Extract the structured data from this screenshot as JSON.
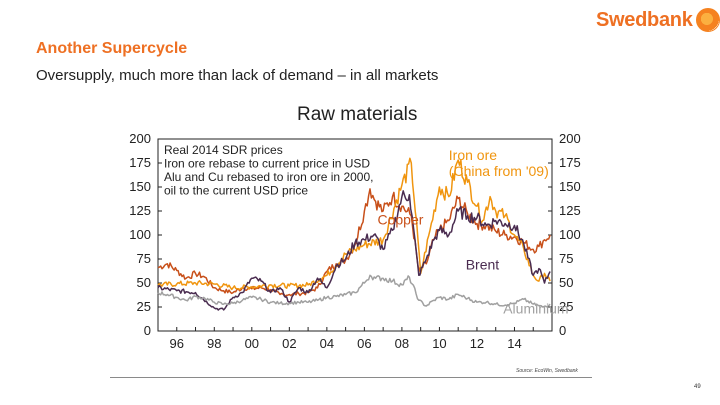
{
  "brand": {
    "name": "Swedbank",
    "color": "#ee7023"
  },
  "slide": {
    "title": "Another Supercycle",
    "subtitle": "Oversupply, much more than lack of demand – in all markets"
  },
  "source": "Source: EcoWin, Swedbank",
  "page_number": "49",
  "chart_data": {
    "type": "line",
    "title": "Raw materials",
    "notes": [
      "Real 2014 SDR prices",
      "Iron ore rebase to current price in USD",
      "Alu and Cu rebased to iron ore in 2000,",
      "oil to the current USD price"
    ],
    "xlim": [
      1995,
      2016
    ],
    "ylim": [
      0,
      200
    ],
    "x_ticks": [
      {
        "value": 1996,
        "label": "96"
      },
      {
        "value": 1998,
        "label": "98"
      },
      {
        "value": 2000,
        "label": "00"
      },
      {
        "value": 2002,
        "label": "02"
      },
      {
        "value": 2004,
        "label": "04"
      },
      {
        "value": 2006,
        "label": "06"
      },
      {
        "value": 2008,
        "label": "08"
      },
      {
        "value": 2010,
        "label": "10"
      },
      {
        "value": 2012,
        "label": "12"
      },
      {
        "value": 2014,
        "label": "14"
      }
    ],
    "y_ticks": [
      0,
      25,
      50,
      75,
      100,
      125,
      150,
      175,
      200
    ],
    "series": [
      {
        "name": "Copper",
        "color": "#c8501a",
        "label_text": "Copper",
        "label_at": [
          2006.7,
          111
        ],
        "points": [
          [
            1995,
            66
          ],
          [
            1995.5,
            70
          ],
          [
            1996,
            63
          ],
          [
            1996.5,
            55
          ],
          [
            1997,
            60
          ],
          [
            1997.5,
            56
          ],
          [
            1998,
            45
          ],
          [
            1998.5,
            42
          ],
          [
            1999,
            40
          ],
          [
            1999.5,
            45
          ],
          [
            2000,
            44
          ],
          [
            2000.5,
            45
          ],
          [
            2001,
            43
          ],
          [
            2001.5,
            38
          ],
          [
            2002,
            38
          ],
          [
            2002.5,
            39
          ],
          [
            2003,
            40
          ],
          [
            2003.5,
            45
          ],
          [
            2004,
            62
          ],
          [
            2004.5,
            70
          ],
          [
            2005,
            74
          ],
          [
            2005.5,
            90
          ],
          [
            2006,
            125
          ],
          [
            2006.3,
            148
          ],
          [
            2006.6,
            135
          ],
          [
            2007,
            125
          ],
          [
            2007.5,
            140
          ],
          [
            2008,
            130
          ],
          [
            2008.5,
            120
          ],
          [
            2008.9,
            62
          ],
          [
            2009.3,
            70
          ],
          [
            2009.7,
            95
          ],
          [
            2010,
            105
          ],
          [
            2010.5,
            115
          ],
          [
            2011,
            138
          ],
          [
            2011.5,
            122
          ],
          [
            2012,
            112
          ],
          [
            2012.5,
            110
          ],
          [
            2013,
            104
          ],
          [
            2013.5,
            100
          ],
          [
            2014,
            98
          ],
          [
            2014.5,
            92
          ],
          [
            2015,
            85
          ],
          [
            2015.3,
            88
          ],
          [
            2015.6,
            95
          ],
          [
            2015.9,
            100
          ]
        ]
      },
      {
        "name": "Iron ore (China from '09)",
        "color": "#f0950f",
        "label_text": [
          "Iron ore",
          "(China from '09)"
        ],
        "label_at": [
          2010.5,
          178
        ],
        "points": [
          [
            1995,
            48
          ],
          [
            1996,
            49
          ],
          [
            1997,
            50
          ],
          [
            1998,
            49
          ],
          [
            1999,
            45
          ],
          [
            2000,
            46
          ],
          [
            2001,
            48
          ],
          [
            2002,
            47
          ],
          [
            2003,
            48
          ],
          [
            2004,
            58
          ],
          [
            2005,
            80
          ],
          [
            2006,
            90
          ],
          [
            2007,
            95
          ],
          [
            2008,
            152
          ],
          [
            2008.5,
            175
          ],
          [
            2009,
            60
          ],
          [
            2009.5,
            105
          ],
          [
            2010,
            150
          ],
          [
            2010.5,
            140
          ],
          [
            2011,
            178
          ],
          [
            2011.5,
            155
          ],
          [
            2012,
            130
          ],
          [
            2012.3,
            115
          ],
          [
            2012.7,
            140
          ],
          [
            2013,
            125
          ],
          [
            2013.5,
            120
          ],
          [
            2014,
            100
          ],
          [
            2014.5,
            85
          ],
          [
            2015,
            58
          ],
          [
            2015.3,
            52
          ],
          [
            2015.6,
            60
          ],
          [
            2015.9,
            52
          ]
        ]
      },
      {
        "name": "Brent",
        "color": "#4a2c50",
        "label_text": "Brent",
        "label_at": [
          2011.4,
          64
        ],
        "points": [
          [
            1995,
            45
          ],
          [
            1996,
            42
          ],
          [
            1997,
            40
          ],
          [
            1998,
            24
          ],
          [
            1998.5,
            22
          ],
          [
            1999,
            35
          ],
          [
            1999.5,
            40
          ],
          [
            2000,
            55
          ],
          [
            2000.5,
            52
          ],
          [
            2001,
            40
          ],
          [
            2001.5,
            45
          ],
          [
            2002,
            30
          ],
          [
            2002.5,
            45
          ],
          [
            2003,
            40
          ],
          [
            2003.5,
            55
          ],
          [
            2004,
            45
          ],
          [
            2004.5,
            68
          ],
          [
            2005,
            75
          ],
          [
            2005.5,
            92
          ],
          [
            2006,
            95
          ],
          [
            2006.5,
            100
          ],
          [
            2007,
            85
          ],
          [
            2007.5,
            105
          ],
          [
            2008,
            140
          ],
          [
            2008.4,
            142
          ],
          [
            2008.9,
            58
          ],
          [
            2009.3,
            75
          ],
          [
            2009.7,
            95
          ],
          [
            2010,
            105
          ],
          [
            2010.5,
            100
          ],
          [
            2011,
            125
          ],
          [
            2011.5,
            120
          ],
          [
            2012,
            118
          ],
          [
            2012.5,
            110
          ],
          [
            2013,
            115
          ],
          [
            2013.5,
            112
          ],
          [
            2014,
            110
          ],
          [
            2014.5,
            90
          ],
          [
            2015,
            58
          ],
          [
            2015.3,
            65
          ],
          [
            2015.6,
            50
          ],
          [
            2015.9,
            62
          ]
        ]
      },
      {
        "name": "Aluminium",
        "color": "#a0a0a0",
        "label_text": "Aluminium",
        "label_at": [
          2013.4,
          18
        ],
        "points": [
          [
            1995,
            40
          ],
          [
            1995.5,
            38
          ],
          [
            1996,
            35
          ],
          [
            1996.5,
            32
          ],
          [
            1997,
            36
          ],
          [
            1997.5,
            34
          ],
          [
            1998,
            30
          ],
          [
            1998.5,
            28
          ],
          [
            1999,
            29
          ],
          [
            1999.5,
            32
          ],
          [
            2000,
            35
          ],
          [
            2000.5,
            33
          ],
          [
            2001,
            30
          ],
          [
            2001.5,
            29
          ],
          [
            2002,
            29
          ],
          [
            2002.5,
            30
          ],
          [
            2003,
            30
          ],
          [
            2003.5,
            32
          ],
          [
            2004,
            35
          ],
          [
            2004.5,
            36
          ],
          [
            2005,
            38
          ],
          [
            2005.5,
            40
          ],
          [
            2006,
            50
          ],
          [
            2006.3,
            58
          ],
          [
            2006.6,
            55
          ],
          [
            2007,
            55
          ],
          [
            2007.5,
            52
          ],
          [
            2008,
            48
          ],
          [
            2008.4,
            56
          ],
          [
            2008.9,
            32
          ],
          [
            2009.3,
            26
          ],
          [
            2009.7,
            32
          ],
          [
            2010,
            35
          ],
          [
            2010.5,
            33
          ],
          [
            2011,
            38
          ],
          [
            2011.5,
            34
          ],
          [
            2012,
            30
          ],
          [
            2012.5,
            30
          ],
          [
            2013,
            28
          ],
          [
            2013.5,
            27
          ],
          [
            2014,
            29
          ],
          [
            2014.5,
            33
          ],
          [
            2015,
            28
          ],
          [
            2015.5,
            25
          ],
          [
            2015.9,
            28
          ]
        ]
      }
    ]
  }
}
